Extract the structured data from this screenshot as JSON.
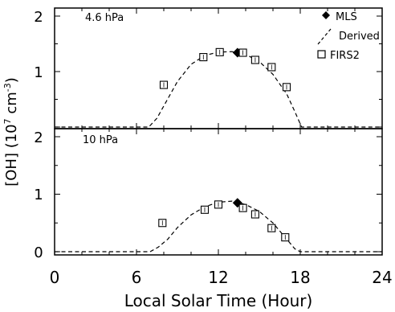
{
  "chart_data": [
    {
      "type": "scatter",
      "panel": "top",
      "panel_label": "4.6 hPa",
      "xlim": [
        0,
        24
      ],
      "ylim": [
        0,
        2
      ],
      "y_ticks": [
        "2",
        "1"
      ],
      "legend": {
        "placement": "top-right",
        "entries": [
          {
            "name": "MLS",
            "marker": "filled-diamond"
          },
          {
            "name": "Derived",
            "marker": "dashed-line"
          },
          {
            "name": "FIRS2",
            "marker": "open-square"
          }
        ]
      },
      "series": [
        {
          "name": "MLS",
          "points": [
            {
              "x": 13.4,
              "y": 1.34
            }
          ]
        },
        {
          "name": "Derived",
          "points": [
            {
              "x": 0,
              "y": 0
            },
            {
              "x": 6.9,
              "y": 0
            },
            {
              "x": 7.5,
              "y": 0.16
            },
            {
              "x": 8.0,
              "y": 0.38
            },
            {
              "x": 9.0,
              "y": 0.82
            },
            {
              "x": 10.0,
              "y": 1.13
            },
            {
              "x": 11.0,
              "y": 1.29
            },
            {
              "x": 12.0,
              "y": 1.35
            },
            {
              "x": 13.0,
              "y": 1.36
            },
            {
              "x": 14.0,
              "y": 1.31
            },
            {
              "x": 15.0,
              "y": 1.18
            },
            {
              "x": 16.0,
              "y": 0.95
            },
            {
              "x": 17.0,
              "y": 0.6
            },
            {
              "x": 17.6,
              "y": 0.28
            },
            {
              "x": 18.1,
              "y": 0
            },
            {
              "x": 24,
              "y": 0
            }
          ]
        },
        {
          "name": "FIRS2",
          "points": [
            {
              "x": 8.0,
              "y": 0.76
            },
            {
              "x": 10.9,
              "y": 1.26
            },
            {
              "x": 12.1,
              "y": 1.35
            },
            {
              "x": 13.8,
              "y": 1.34
            },
            {
              "x": 14.7,
              "y": 1.21
            },
            {
              "x": 15.9,
              "y": 1.08
            },
            {
              "x": 17.0,
              "y": 0.72
            }
          ]
        }
      ]
    },
    {
      "type": "scatter",
      "panel": "bottom",
      "panel_label": "10 hPa",
      "xlim": [
        0,
        24
      ],
      "ylim": [
        0,
        2
      ],
      "y_ticks": [
        "2",
        "1",
        "0"
      ],
      "x_ticks": [
        "0",
        "6",
        "12",
        "18",
        "24"
      ],
      "xlabel": "Local Solar Time (Hour)",
      "series": [
        {
          "name": "MLS",
          "points": [
            {
              "x": 13.4,
              "y": 0.85
            }
          ]
        },
        {
          "name": "Derived",
          "points": [
            {
              "x": 0,
              "y": 0
            },
            {
              "x": 7.0,
              "y": 0
            },
            {
              "x": 7.6,
              "y": 0.08
            },
            {
              "x": 8.3,
              "y": 0.22
            },
            {
              "x": 9.0,
              "y": 0.42
            },
            {
              "x": 10.0,
              "y": 0.64
            },
            {
              "x": 11.0,
              "y": 0.78
            },
            {
              "x": 12.0,
              "y": 0.86
            },
            {
              "x": 13.0,
              "y": 0.88
            },
            {
              "x": 14.0,
              "y": 0.82
            },
            {
              "x": 15.0,
              "y": 0.7
            },
            {
              "x": 16.0,
              "y": 0.5
            },
            {
              "x": 17.0,
              "y": 0.22
            },
            {
              "x": 17.6,
              "y": 0.05
            },
            {
              "x": 18.0,
              "y": 0
            },
            {
              "x": 24,
              "y": 0
            }
          ]
        },
        {
          "name": "FIRS2",
          "points": [
            {
              "x": 7.9,
              "y": 0.5
            },
            {
              "x": 11.0,
              "y": 0.73
            },
            {
              "x": 12.0,
              "y": 0.82
            },
            {
              "x": 13.8,
              "y": 0.76
            },
            {
              "x": 14.7,
              "y": 0.65
            },
            {
              "x": 15.9,
              "y": 0.41
            },
            {
              "x": 16.9,
              "y": 0.25
            }
          ]
        }
      ]
    }
  ],
  "ylabel": "[OH] (10⁷ cm⁻³)",
  "ylabel_parts": {
    "main": "[OH] (10",
    "exp1": "7",
    "mid": " cm",
    "exp2": "-3",
    "end": ")"
  }
}
